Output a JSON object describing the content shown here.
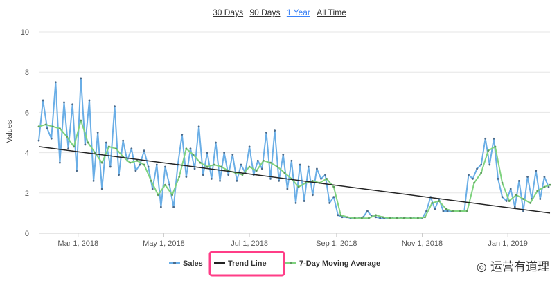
{
  "range_selector": {
    "options": [
      {
        "label": "30 Days",
        "active": false
      },
      {
        "label": "90 Days",
        "active": false
      },
      {
        "label": "1 Year",
        "active": true
      },
      {
        "label": "All Time",
        "active": false
      }
    ],
    "active_color": "#3b82f6"
  },
  "watermark": {
    "text": "运营有道理",
    "icon": "wechat-icon"
  },
  "legend": {
    "highlight_color": "#ff3d87",
    "highlighted_item": "Trend Line"
  },
  "chart_data": {
    "type": "line",
    "title": "",
    "xlabel": "",
    "ylabel": "Values",
    "ylim": [
      0,
      10
    ],
    "yticks": [
      0,
      2,
      4,
      6,
      8,
      10
    ],
    "xlim": [
      "2018-02-01",
      "2019-01-31"
    ],
    "xticks": [
      {
        "date": "2018-03-01",
        "label": "Mar 1, 2018"
      },
      {
        "date": "2018-05-01",
        "label": "May 1, 2018"
      },
      {
        "date": "2018-07-01",
        "label": "Jul 1, 2018"
      },
      {
        "date": "2018-09-01",
        "label": "Sep 1, 2018"
      },
      {
        "date": "2018-11-01",
        "label": "Nov 1, 2018"
      },
      {
        "date": "2019-01-01",
        "label": "Jan 1, 2019"
      }
    ],
    "grid": true,
    "legend_position": "bottom",
    "series": [
      {
        "name": "Sales",
        "color": "#6aaee6",
        "marker_color": "#4a6a8a",
        "x": [
          "2018-02-01",
          "2018-02-04",
          "2018-02-07",
          "2018-02-10",
          "2018-02-13",
          "2018-02-16",
          "2018-02-19",
          "2018-02-22",
          "2018-02-25",
          "2018-02-28",
          "2018-03-03",
          "2018-03-06",
          "2018-03-09",
          "2018-03-12",
          "2018-03-15",
          "2018-03-18",
          "2018-03-21",
          "2018-03-24",
          "2018-03-27",
          "2018-03-30",
          "2018-04-02",
          "2018-04-05",
          "2018-04-08",
          "2018-04-11",
          "2018-04-14",
          "2018-04-17",
          "2018-04-20",
          "2018-04-23",
          "2018-04-26",
          "2018-04-29",
          "2018-05-02",
          "2018-05-05",
          "2018-05-08",
          "2018-05-11",
          "2018-05-14",
          "2018-05-17",
          "2018-05-20",
          "2018-05-23",
          "2018-05-26",
          "2018-05-29",
          "2018-06-01",
          "2018-06-04",
          "2018-06-07",
          "2018-06-10",
          "2018-06-13",
          "2018-06-16",
          "2018-06-19",
          "2018-06-22",
          "2018-06-25",
          "2018-06-28",
          "2018-07-01",
          "2018-07-04",
          "2018-07-07",
          "2018-07-10",
          "2018-07-13",
          "2018-07-16",
          "2018-07-19",
          "2018-07-22",
          "2018-07-25",
          "2018-07-28",
          "2018-07-31",
          "2018-08-03",
          "2018-08-06",
          "2018-08-09",
          "2018-08-12",
          "2018-08-15",
          "2018-08-18",
          "2018-08-21",
          "2018-08-24",
          "2018-08-27",
          "2018-08-30",
          "2018-09-02",
          "2018-09-05",
          "2018-09-08",
          "2018-09-11",
          "2018-09-14",
          "2018-09-17",
          "2018-09-20",
          "2018-09-23",
          "2018-09-26",
          "2018-09-29",
          "2018-10-02",
          "2018-10-05",
          "2018-10-08",
          "2018-10-11",
          "2018-10-14",
          "2018-10-17",
          "2018-10-20",
          "2018-10-23",
          "2018-10-26",
          "2018-10-29",
          "2018-11-01",
          "2018-11-04",
          "2018-11-07",
          "2018-11-10",
          "2018-11-13",
          "2018-11-16",
          "2018-11-19",
          "2018-11-22",
          "2018-11-25",
          "2018-11-28",
          "2018-12-01",
          "2018-12-04",
          "2018-12-07",
          "2018-12-10",
          "2018-12-13",
          "2018-12-16",
          "2018-12-19",
          "2018-12-22",
          "2018-12-25",
          "2018-12-28",
          "2018-12-31",
          "2019-01-03",
          "2019-01-06",
          "2019-01-09",
          "2019-01-12",
          "2019-01-15",
          "2019-01-18",
          "2019-01-21",
          "2019-01-24",
          "2019-01-27",
          "2019-01-30"
        ],
        "values": [
          4.6,
          6.6,
          5.2,
          4.7,
          7.5,
          3.5,
          6.5,
          4.2,
          6.4,
          3.1,
          7.7,
          4.4,
          6.6,
          2.6,
          5.0,
          2.2,
          4.5,
          3.3,
          6.3,
          2.9,
          4.6,
          3.6,
          4.2,
          3.1,
          3.4,
          4.1,
          3.3,
          2.2,
          3.4,
          1.3,
          3.3,
          2.4,
          1.3,
          3.4,
          4.9,
          2.8,
          4.2,
          3.2,
          5.3,
          2.9,
          4.0,
          2.7,
          4.5,
          2.6,
          4.0,
          2.9,
          3.9,
          2.6,
          3.4,
          3.0,
          4.3,
          2.9,
          3.6,
          3.2,
          5.0,
          2.7,
          5.1,
          2.6,
          3.9,
          2.2,
          3.6,
          1.5,
          3.4,
          1.6,
          3.3,
          1.9,
          3.2,
          2.7,
          2.9,
          1.5,
          1.8,
          0.9,
          0.8,
          0.8,
          0.75,
          0.75,
          0.75,
          0.8,
          1.1,
          0.85,
          0.8,
          0.75,
          0.75,
          0.75,
          0.75,
          0.75,
          0.75,
          0.75,
          0.75,
          0.75,
          0.75,
          0.75,
          1.1,
          1.8,
          1.2,
          1.7,
          1.1,
          1.1,
          1.1,
          1.1,
          1.1,
          1.1,
          2.9,
          2.7,
          3.2,
          3.4,
          4.7,
          3.4,
          4.7,
          2.7,
          1.8,
          1.6,
          2.2,
          1.3,
          2.6,
          1.1,
          2.8,
          1.7,
          3.1,
          1.7,
          2.8,
          2.3
        ]
      },
      {
        "name": "Trend Line",
        "color": "#222222",
        "x": [
          "2018-02-01",
          "2019-01-31"
        ],
        "values": [
          4.3,
          1.0
        ]
      },
      {
        "name": "7-Day Moving Average",
        "color": "#7fd37f",
        "marker_color": "#5c9a5c",
        "x": [
          "2018-02-01",
          "2018-02-06",
          "2018-02-11",
          "2018-02-16",
          "2018-02-21",
          "2018-02-26",
          "2018-03-03",
          "2018-03-08",
          "2018-03-13",
          "2018-03-18",
          "2018-03-23",
          "2018-03-28",
          "2018-04-02",
          "2018-04-07",
          "2018-04-12",
          "2018-04-17",
          "2018-04-22",
          "2018-04-27",
          "2018-05-02",
          "2018-05-07",
          "2018-05-12",
          "2018-05-17",
          "2018-05-22",
          "2018-05-27",
          "2018-06-01",
          "2018-06-06",
          "2018-06-11",
          "2018-06-16",
          "2018-06-21",
          "2018-06-26",
          "2018-07-01",
          "2018-07-06",
          "2018-07-11",
          "2018-07-16",
          "2018-07-21",
          "2018-07-26",
          "2018-07-31",
          "2018-08-05",
          "2018-08-10",
          "2018-08-15",
          "2018-08-20",
          "2018-08-25",
          "2018-08-30",
          "2018-09-04",
          "2018-09-09",
          "2018-09-14",
          "2018-09-19",
          "2018-09-24",
          "2018-09-29",
          "2018-10-04",
          "2018-10-09",
          "2018-10-14",
          "2018-10-19",
          "2018-10-24",
          "2018-10-29",
          "2018-11-03",
          "2018-11-08",
          "2018-11-13",
          "2018-11-18",
          "2018-11-23",
          "2018-11-28",
          "2018-12-03",
          "2018-12-08",
          "2018-12-13",
          "2018-12-18",
          "2018-12-23",
          "2018-12-28",
          "2019-01-02",
          "2019-01-07",
          "2019-01-12",
          "2019-01-17",
          "2019-01-22",
          "2019-01-27",
          "2019-01-31"
        ],
        "values": [
          5.3,
          5.4,
          5.3,
          5.2,
          4.8,
          4.3,
          5.6,
          4.5,
          4.0,
          3.5,
          4.3,
          4.2,
          3.8,
          3.5,
          3.6,
          3.4,
          2.6,
          1.9,
          2.4,
          1.9,
          2.8,
          4.2,
          3.9,
          3.5,
          3.3,
          3.4,
          3.3,
          3.1,
          3.0,
          2.9,
          3.3,
          3.1,
          3.6,
          3.5,
          3.3,
          3.0,
          2.7,
          2.3,
          2.5,
          2.6,
          2.5,
          2.7,
          2.3,
          0.9,
          0.8,
          0.75,
          0.75,
          0.75,
          0.9,
          0.8,
          0.75,
          0.75,
          0.75,
          0.75,
          0.75,
          0.8,
          1.5,
          1.6,
          1.2,
          1.1,
          1.1,
          1.1,
          2.5,
          3.0,
          4.1,
          4.3,
          2.5,
          1.6,
          1.9,
          1.7,
          1.5,
          2.1,
          2.3,
          2.4
        ]
      }
    ]
  }
}
